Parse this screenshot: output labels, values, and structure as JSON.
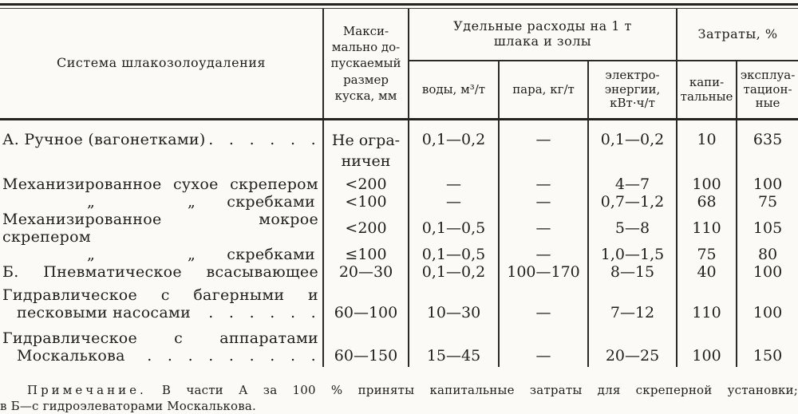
{
  "table": {
    "header": {
      "col_system": "Система шлакозолоудаления",
      "col_max_size": "Макси-\nмально до-\nпускаемый\nразмер\nкуска, мм",
      "group_specific": "Удельные расходы на 1 т\nшлака и золы",
      "group_costs": "Затраты, %",
      "col_water": "воды, м³/т",
      "col_steam": "пара, кг/т",
      "col_electric": "электро-\nэнергии,\nкВт·ч/т",
      "col_capital": "капи-\nтальные",
      "col_operational": "эксплуа-\nтацион-\nные"
    },
    "rows": [
      {
        "name": "А. Ручное (вагонетками)",
        "dots": ". . . . . .",
        "size": "Не огра-\nничен",
        "water": "0,1—0,2",
        "steam": "—",
        "electric": "0,1—0,2",
        "capital": "10",
        "operational": "635"
      },
      {
        "name": "Механизированное сухое скрепером",
        "size": "<200",
        "water": "—",
        "steam": "—",
        "electric": "4—7",
        "capital": "100",
        "operational": "100"
      },
      {
        "ditto1": "„",
        "ditto2": "„",
        "name": "скребками",
        "size": "<100",
        "water": "—",
        "steam": "—",
        "electric": "0,7—1,2",
        "capital": "68",
        "operational": "75"
      },
      {
        "name": "Механизированное мокрое скрепером",
        "size": "<200",
        "water": "0,1—0,5",
        "steam": "—",
        "electric": "5—8",
        "capital": "110",
        "operational": "105"
      },
      {
        "ditto1": "„",
        "ditto2": "„",
        "name": "скребками",
        "size": "≤100",
        "water": "0,1—0,5",
        "steam": "—",
        "electric": "1,0—1,5",
        "capital": "75",
        "operational": "80"
      },
      {
        "name": "Б. Пневматическое всасывающее",
        "size": "20—30",
        "water": "0,1—0,2",
        "steam": "100—170",
        "electric": "8—15",
        "capital": "40",
        "operational": "100"
      },
      {
        "name_line1": "Гидравлическое с багерными и",
        "name_line2": "песковыми насосами",
        "dots": ". . . . . .",
        "size": "60—100",
        "water": "10—30",
        "steam": "—",
        "electric": "7—12",
        "capital": "110",
        "operational": "100"
      },
      {
        "name_line1": "Гидравлическое с аппаратами",
        "name_line2": "Москалькова",
        "dots": ". . . . . . . . .",
        "size": "60—150",
        "water": "15—45",
        "steam": "—",
        "electric": "20—25",
        "capital": "100",
        "operational": "150"
      }
    ],
    "note": {
      "label": "Примечание.",
      "line1": "В части А за 100 % приняты капитальные затраты для скреперной установки;",
      "line2": "в Б—с гидроэлеваторами Москалькова."
    }
  }
}
